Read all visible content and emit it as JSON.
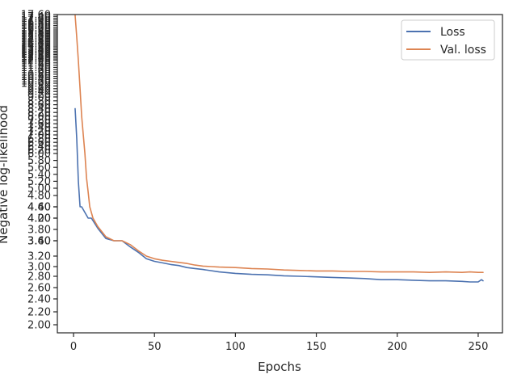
{
  "chart_data": {
    "type": "line",
    "title": "",
    "xlabel": "Epochs",
    "ylabel": "Negative log-likelihood",
    "xlim": [
      -10,
      265
    ],
    "ylim": [
      1.92,
      17.65
    ],
    "xticks": [
      0,
      50,
      100,
      150,
      200,
      250
    ],
    "xtick_labels": [
      "0",
      "50",
      "100",
      "150",
      "200",
      "250"
    ],
    "yticks": [
      2.0,
      2.2,
      2.4,
      2.6,
      2.8,
      3.0,
      3.2,
      3.4,
      3.6,
      3.8,
      4.0,
      4.2,
      4.4,
      4.6,
      4.8,
      5.0,
      5.2,
      5.4,
      5.6,
      5.8,
      6.0,
      6.2,
      6.4,
      6.6,
      6.8,
      7.0,
      7.2,
      7.4,
      7.6,
      7.8,
      8.0,
      8.2,
      8.4,
      8.6,
      8.8,
      9.0,
      9.2,
      9.4,
      9.6,
      9.8,
      10.0,
      10.2,
      10.4,
      10.6,
      10.8,
      11.0,
      11.2,
      11.4,
      11.6,
      11.8,
      12.0,
      12.2,
      12.4,
      12.6,
      12.8,
      13.0,
      13.2,
      13.4,
      13.6,
      13.8,
      14.0,
      14.2,
      14.4,
      14.6,
      14.8,
      15.0,
      15.2,
      15.4,
      15.6,
      15.8,
      16.0,
      16.2,
      16.4,
      16.6,
      16.8,
      17.0,
      17.2,
      17.4,
      17.6
    ],
    "ytick_labels": [
      "2.00",
      "2.20",
      "2.40",
      "2.60",
      "2.80",
      "3.00",
      "3.20",
      "3.40",
      "3.60",
      "3.80",
      "4.00",
      "4.20",
      "4.40",
      "4.60",
      "4.80",
      "5.00",
      "5.20",
      "5.40",
      "5.60",
      "5.80",
      "6.00",
      "6.20",
      "6.40",
      "6.60",
      "6.80",
      "7.00",
      "7.20",
      "7.40",
      "7.60",
      "7.80",
      "8.00",
      "8.20",
      "8.40",
      "8.60",
      "8.80",
      "9.00",
      "9.20",
      "9.40",
      "9.60",
      "9.80",
      "10.00",
      "10.20",
      "10.40",
      "10.60",
      "10.80",
      "11.00",
      "11.20",
      "11.40",
      "11.60",
      "11.80",
      "12.00",
      "12.20",
      "12.40",
      "12.60",
      "12.80",
      "13.00",
      "13.20",
      "13.40",
      "13.60",
      "13.80",
      "14.00",
      "14.20",
      "14.40",
      "14.60",
      "14.80",
      "15.00",
      "15.20",
      "15.40",
      "15.60",
      "15.80",
      "16.00",
      "16.20",
      "16.40",
      "16.60",
      "16.80",
      "17.00",
      "17.20",
      "17.40",
      "17.60"
    ],
    "y_scale": "nonlinear (tick labels are evenly spaced in value but unevenly spaced on the axis)",
    "grid": false,
    "legend_position": "top-right",
    "series": [
      {
        "name": "Loss",
        "color": "#4c72b0",
        "x": [
          1,
          2,
          3,
          4,
          5,
          7,
          9,
          11,
          15,
          20,
          25,
          30,
          35,
          40,
          45,
          50,
          55,
          60,
          65,
          70,
          75,
          80,
          90,
          100,
          110,
          120,
          130,
          140,
          150,
          160,
          170,
          180,
          190,
          200,
          210,
          220,
          230,
          240,
          245,
          250,
          252,
          253
        ],
        "y": [
          8.4,
          6.8,
          5.2,
          4.6,
          4.5,
          4.3,
          4.15,
          4.0,
          3.82,
          3.64,
          3.53,
          3.45,
          3.32,
          3.25,
          3.15,
          3.1,
          3.07,
          3.04,
          3.02,
          2.98,
          2.96,
          2.94,
          2.89,
          2.86,
          2.84,
          2.83,
          2.81,
          2.8,
          2.79,
          2.78,
          2.77,
          2.76,
          2.74,
          2.74,
          2.73,
          2.72,
          2.72,
          2.71,
          2.7,
          2.7,
          2.74,
          2.72
        ]
      },
      {
        "name": "Val. loss",
        "color": "#dd8452",
        "x": [
          1,
          2,
          3,
          4,
          5,
          6,
          7,
          8,
          9,
          10,
          12,
          15,
          20,
          25,
          30,
          35,
          40,
          45,
          50,
          55,
          60,
          65,
          70,
          75,
          80,
          85,
          90,
          100,
          110,
          120,
          130,
          140,
          150,
          160,
          170,
          180,
          190,
          200,
          210,
          220,
          230,
          240,
          245,
          250,
          253
        ],
        "y": [
          17.5,
          15.0,
          12.0,
          9.6,
          8.0,
          7.0,
          6.0,
          5.3,
          4.9,
          4.6,
          4.2,
          3.85,
          3.67,
          3.57,
          3.46,
          3.35,
          3.27,
          3.2,
          3.15,
          3.12,
          3.1,
          3.08,
          3.06,
          3.03,
          3.01,
          3.0,
          2.99,
          2.98,
          2.96,
          2.95,
          2.93,
          2.92,
          2.91,
          2.91,
          2.9,
          2.9,
          2.89,
          2.89,
          2.89,
          2.88,
          2.89,
          2.88,
          2.89,
          2.88,
          2.88
        ]
      }
    ]
  }
}
